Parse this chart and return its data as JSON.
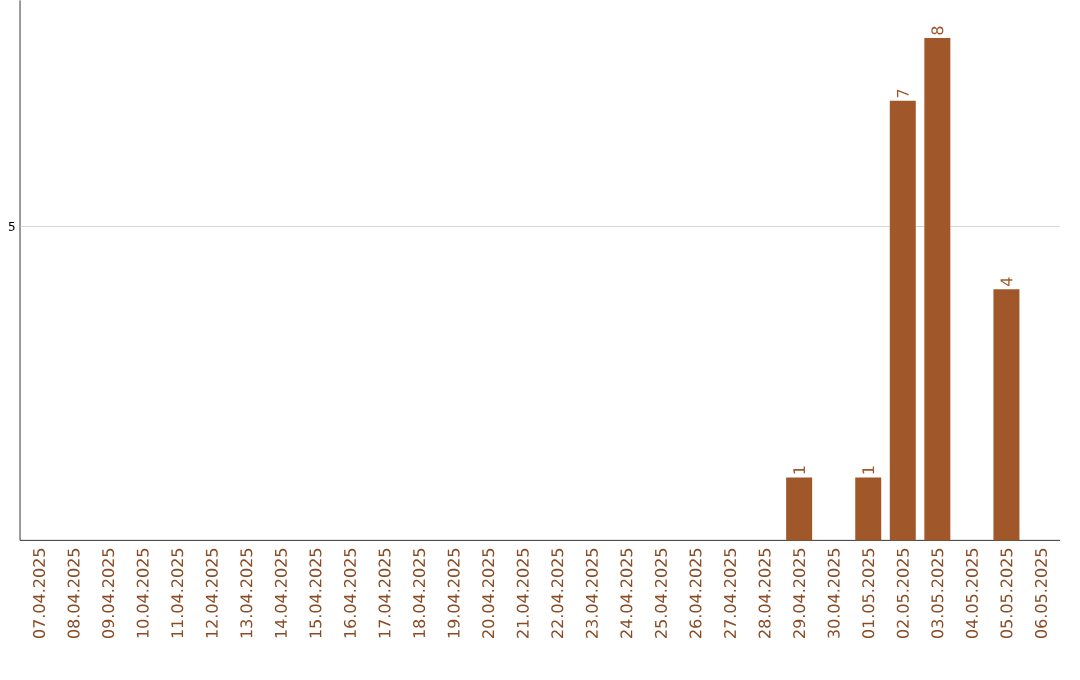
{
  "chart_data": {
    "type": "bar",
    "categories": [
      "07.04.2025",
      "08.04.2025",
      "09.04.2025",
      "10.04.2025",
      "11.04.2025",
      "12.04.2025",
      "13.04.2025",
      "14.04.2025",
      "15.04.2025",
      "16.04.2025",
      "17.04.2025",
      "18.04.2025",
      "19.04.2025",
      "20.04.2025",
      "21.04.2025",
      "22.04.2025",
      "23.04.2025",
      "24.04.2025",
      "25.04.2025",
      "26.04.2025",
      "27.04.2025",
      "28.04.2025",
      "29.04.2025",
      "30.04.2025",
      "01.05.2025",
      "02.05.2025",
      "03.05.2025",
      "04.05.2025",
      "05.05.2025",
      "06.05.2025"
    ],
    "values": [
      null,
      null,
      null,
      null,
      null,
      null,
      null,
      null,
      null,
      null,
      null,
      null,
      null,
      null,
      null,
      null,
      null,
      null,
      null,
      null,
      null,
      null,
      1,
      null,
      1,
      7,
      8,
      null,
      4,
      null
    ],
    "data_labels": true,
    "color": "#a0582a",
    "ylim": [
      0,
      8.6
    ],
    "ref_lines": [
      {
        "axis": "y",
        "value": 5,
        "label": "5",
        "color": "#cccccc"
      }
    ]
  }
}
